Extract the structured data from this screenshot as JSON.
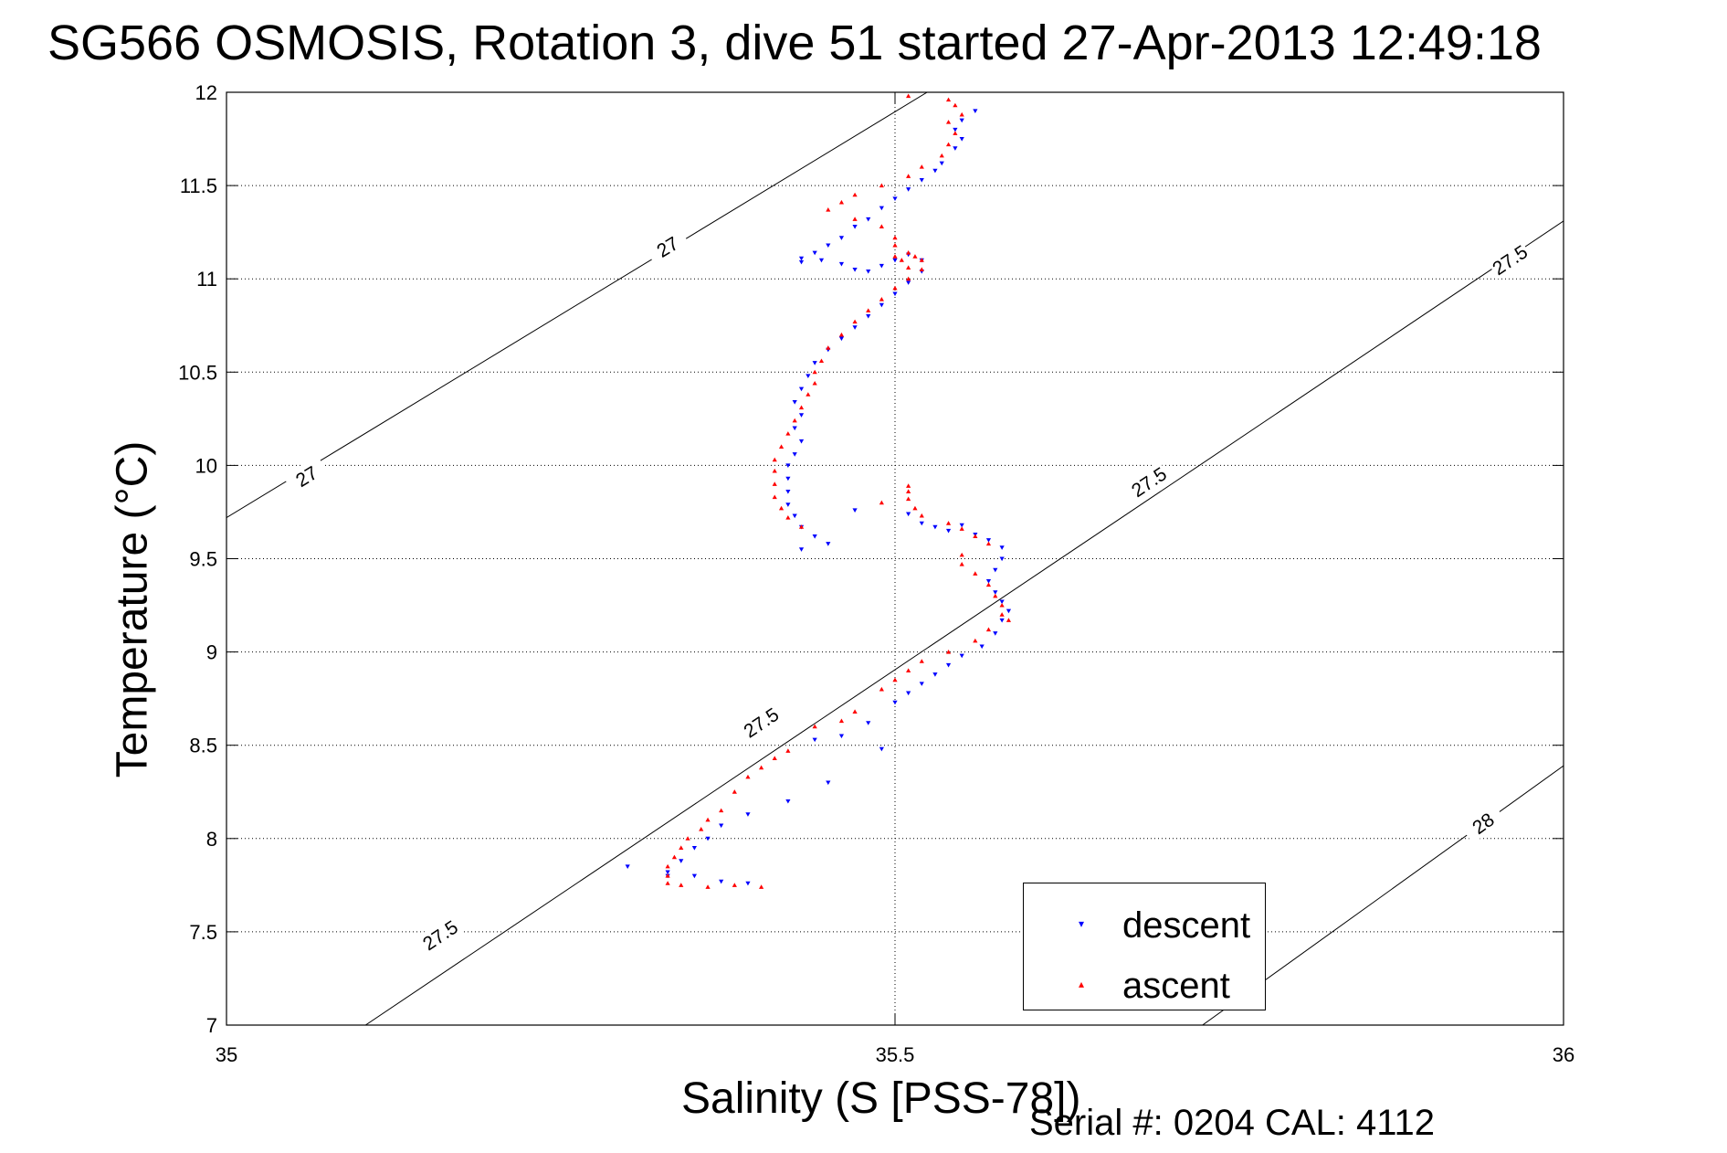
{
  "figure": {
    "title": "SG566 OSMOSIS, Rotation 3, dive 51 started 27-Apr-2013 12:49:18",
    "footer": "Serial #: 0204  CAL: 4112"
  },
  "colors": {
    "descent": "#0000ff",
    "ascent": "#ff0000",
    "axes": "#000000",
    "grid": "#000000"
  },
  "chart_data": {
    "type": "scatter",
    "title": "SG566 OSMOSIS, Rotation 3, dive 51 started 27-Apr-2013 12:49:18",
    "xlabel": "Salinity (S [PSS-78])",
    "ylabel": "Temperature (°C)",
    "xlim": [
      35,
      36
    ],
    "ylim": [
      7,
      12
    ],
    "xticks": [
      35,
      35.5,
      36
    ],
    "xtick_labels": [
      "35",
      "35.5",
      "36"
    ],
    "yticks": [
      7,
      7.5,
      8,
      8.5,
      9,
      9.5,
      10,
      10.5,
      11,
      11.5,
      12
    ],
    "ytick_labels": [
      "7",
      "7.5",
      "8",
      "8.5",
      "9",
      "9.5",
      "10",
      "10.5",
      "11",
      "11.5",
      "12"
    ],
    "grid": true,
    "legend_position": "bottom-right",
    "density_contours": [
      {
        "label": "27",
        "points": [
          [
            35.0,
            9.72
          ],
          [
            35.524,
            12.0
          ]
        ],
        "label_positions": [
          [
            35.06,
            9.94
          ],
          [
            35.33,
            11.17
          ]
        ]
      },
      {
        "label": "27.5",
        "points": [
          [
            35.104,
            7.0
          ],
          [
            36.0,
            11.31
          ]
        ],
        "label_positions": [
          [
            35.16,
            7.48
          ],
          [
            35.4,
            8.62
          ],
          [
            35.69,
            9.91
          ],
          [
            35.96,
            11.1
          ]
        ]
      },
      {
        "label": "28",
        "points": [
          [
            35.73,
            7.0
          ],
          [
            36.0,
            8.39
          ]
        ],
        "label_positions": [
          [
            35.94,
            8.08
          ]
        ]
      }
    ],
    "series": [
      {
        "name": "descent",
        "marker": "down-triangle",
        "color": "#0000ff",
        "points": [
          [
            35.56,
            11.9
          ],
          [
            35.55,
            11.85
          ],
          [
            35.545,
            11.8
          ],
          [
            35.55,
            11.75
          ],
          [
            35.545,
            11.7
          ],
          [
            35.535,
            11.62
          ],
          [
            35.53,
            11.58
          ],
          [
            35.52,
            11.53
          ],
          [
            35.51,
            11.48
          ],
          [
            35.5,
            11.43
          ],
          [
            35.49,
            11.38
          ],
          [
            35.48,
            11.32
          ],
          [
            35.47,
            11.28
          ],
          [
            35.46,
            11.22
          ],
          [
            35.45,
            11.18
          ],
          [
            35.44,
            11.14
          ],
          [
            35.43,
            11.11
          ],
          [
            35.43,
            11.09
          ],
          [
            35.445,
            11.1
          ],
          [
            35.46,
            11.08
          ],
          [
            35.47,
            11.05
          ],
          [
            35.48,
            11.04
          ],
          [
            35.49,
            11.07
          ],
          [
            35.5,
            11.1
          ],
          [
            35.51,
            11.13
          ],
          [
            35.52,
            11.1
          ],
          [
            35.52,
            11.04
          ],
          [
            35.51,
            10.98
          ],
          [
            35.5,
            10.92
          ],
          [
            35.49,
            10.86
          ],
          [
            35.48,
            10.8
          ],
          [
            35.47,
            10.74
          ],
          [
            35.46,
            10.68
          ],
          [
            35.45,
            10.62
          ],
          [
            35.44,
            10.55
          ],
          [
            35.435,
            10.48
          ],
          [
            35.43,
            10.41
          ],
          [
            35.425,
            10.34
          ],
          [
            35.43,
            10.27
          ],
          [
            35.425,
            10.2
          ],
          [
            35.43,
            10.13
          ],
          [
            35.425,
            10.06
          ],
          [
            35.42,
            10.0
          ],
          [
            35.42,
            9.93
          ],
          [
            35.42,
            9.86
          ],
          [
            35.42,
            9.79
          ],
          [
            35.425,
            9.73
          ],
          [
            35.43,
            9.67
          ],
          [
            35.44,
            9.62
          ],
          [
            35.45,
            9.58
          ],
          [
            35.43,
            9.55
          ],
          [
            35.47,
            9.76
          ],
          [
            35.51,
            9.74
          ],
          [
            35.52,
            9.69
          ],
          [
            35.53,
            9.67
          ],
          [
            35.54,
            9.65
          ],
          [
            35.55,
            9.68
          ],
          [
            35.56,
            9.63
          ],
          [
            35.57,
            9.6
          ],
          [
            35.58,
            9.56
          ],
          [
            35.58,
            9.5
          ],
          [
            35.575,
            9.44
          ],
          [
            35.57,
            9.38
          ],
          [
            35.575,
            9.32
          ],
          [
            35.58,
            9.27
          ],
          [
            35.585,
            9.22
          ],
          [
            35.58,
            9.17
          ],
          [
            35.575,
            9.1
          ],
          [
            35.565,
            9.03
          ],
          [
            35.55,
            8.98
          ],
          [
            35.54,
            8.93
          ],
          [
            35.53,
            8.88
          ],
          [
            35.52,
            8.83
          ],
          [
            35.51,
            8.78
          ],
          [
            35.5,
            8.73
          ],
          [
            35.48,
            8.62
          ],
          [
            35.46,
            8.55
          ],
          [
            35.44,
            8.53
          ],
          [
            35.49,
            8.48
          ],
          [
            35.45,
            8.3
          ],
          [
            35.42,
            8.2
          ],
          [
            35.39,
            8.13
          ],
          [
            35.37,
            8.07
          ],
          [
            35.36,
            8.0
          ],
          [
            35.35,
            7.95
          ],
          [
            35.34,
            7.88
          ],
          [
            35.33,
            7.82
          ],
          [
            35.35,
            7.8
          ],
          [
            35.37,
            7.77
          ],
          [
            35.39,
            7.76
          ],
          [
            35.3,
            7.85
          ],
          [
            35.33,
            7.8
          ]
        ]
      },
      {
        "name": "ascent",
        "marker": "up-triangle",
        "color": "#ff0000",
        "points": [
          [
            35.51,
            11.98
          ],
          [
            35.54,
            11.96
          ],
          [
            35.545,
            11.93
          ],
          [
            35.55,
            11.88
          ],
          [
            35.54,
            11.84
          ],
          [
            35.545,
            11.78
          ],
          [
            35.54,
            11.72
          ],
          [
            35.535,
            11.66
          ],
          [
            35.52,
            11.6
          ],
          [
            35.51,
            11.55
          ],
          [
            35.49,
            11.5
          ],
          [
            35.47,
            11.45
          ],
          [
            35.46,
            11.41
          ],
          [
            35.45,
            11.37
          ],
          [
            35.47,
            11.32
          ],
          [
            35.49,
            11.28
          ],
          [
            35.5,
            11.22
          ],
          [
            35.5,
            11.18
          ],
          [
            35.51,
            11.14
          ],
          [
            35.5,
            11.12
          ],
          [
            35.505,
            11.1
          ],
          [
            35.51,
            11.06
          ],
          [
            35.515,
            11.12
          ],
          [
            35.52,
            11.1
          ],
          [
            35.52,
            11.05
          ],
          [
            35.51,
            11.0
          ],
          [
            35.5,
            10.95
          ],
          [
            35.49,
            10.89
          ],
          [
            35.48,
            10.83
          ],
          [
            35.47,
            10.77
          ],
          [
            35.46,
            10.7
          ],
          [
            35.45,
            10.63
          ],
          [
            35.445,
            10.56
          ],
          [
            35.44,
            10.5
          ],
          [
            35.44,
            10.44
          ],
          [
            35.435,
            10.38
          ],
          [
            35.43,
            10.31
          ],
          [
            35.425,
            10.24
          ],
          [
            35.42,
            10.17
          ],
          [
            35.415,
            10.1
          ],
          [
            35.41,
            10.03
          ],
          [
            35.41,
            9.97
          ],
          [
            35.41,
            9.9
          ],
          [
            35.41,
            9.83
          ],
          [
            35.415,
            9.77
          ],
          [
            35.42,
            9.72
          ],
          [
            35.43,
            9.67
          ],
          [
            35.49,
            9.8
          ],
          [
            35.51,
            9.89
          ],
          [
            35.51,
            9.86
          ],
          [
            35.51,
            9.82
          ],
          [
            35.515,
            9.77
          ],
          [
            35.52,
            9.73
          ],
          [
            35.54,
            9.69
          ],
          [
            35.55,
            9.66
          ],
          [
            35.56,
            9.62
          ],
          [
            35.57,
            9.58
          ],
          [
            35.55,
            9.52
          ],
          [
            35.55,
            9.47
          ],
          [
            35.56,
            9.42
          ],
          [
            35.57,
            9.36
          ],
          [
            35.575,
            9.3
          ],
          [
            35.58,
            9.25
          ],
          [
            35.58,
            9.2
          ],
          [
            35.585,
            9.17
          ],
          [
            35.57,
            9.12
          ],
          [
            35.56,
            9.06
          ],
          [
            35.54,
            9.0
          ],
          [
            35.52,
            8.95
          ],
          [
            35.51,
            8.9
          ],
          [
            35.5,
            8.85
          ],
          [
            35.49,
            8.8
          ],
          [
            35.47,
            8.68
          ],
          [
            35.46,
            8.63
          ],
          [
            35.44,
            8.6
          ],
          [
            35.42,
            8.47
          ],
          [
            35.41,
            8.43
          ],
          [
            35.4,
            8.38
          ],
          [
            35.39,
            8.33
          ],
          [
            35.38,
            8.25
          ],
          [
            35.37,
            8.15
          ],
          [
            35.36,
            8.1
          ],
          [
            35.355,
            8.05
          ],
          [
            35.345,
            8.0
          ],
          [
            35.34,
            7.95
          ],
          [
            35.335,
            7.9
          ],
          [
            35.33,
            7.85
          ],
          [
            35.33,
            7.8
          ],
          [
            35.33,
            7.76
          ],
          [
            35.34,
            7.75
          ],
          [
            35.36,
            7.74
          ],
          [
            35.38,
            7.75
          ],
          [
            35.4,
            7.74
          ]
        ]
      }
    ]
  }
}
